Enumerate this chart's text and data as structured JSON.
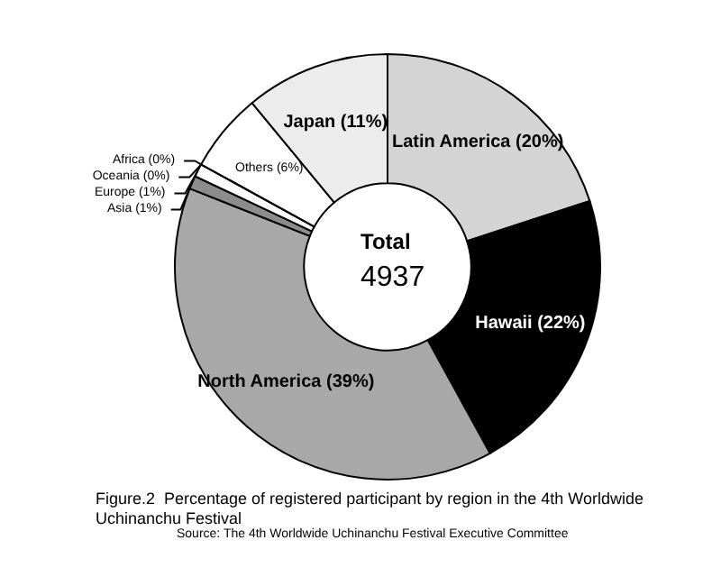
{
  "chart_data": {
    "type": "donut",
    "title": "Figure.2  Percentage of registered participant by region in the 4th Worldwide\nUchinanchu Festival",
    "categories": [
      "Latin America",
      "Hawaii",
      "North America",
      "Asia",
      "Europe",
      "Africa",
      "Oceania",
      "Others",
      "Japan"
    ],
    "values": [
      20,
      22,
      39,
      1,
      1,
      0,
      0,
      6,
      11
    ],
    "colors": [
      "#d4d4d4",
      "#000000",
      "#a8a8a8",
      "#8c8c8c",
      "#ffffff",
      "#ffffff",
      "#000000",
      "#ffffff",
      "#ececec"
    ],
    "value_labels": [
      "(20%)",
      "(22%)",
      "(39%)",
      "(1%)",
      "(1%)",
      "(0%)",
      "(0%)",
      "(6%)",
      "(11%)"
    ],
    "annotations": [
      "Total",
      "4937",
      "Source: The 4th Worldwide Uchinanchu Festival Executive Committee"
    ]
  }
}
